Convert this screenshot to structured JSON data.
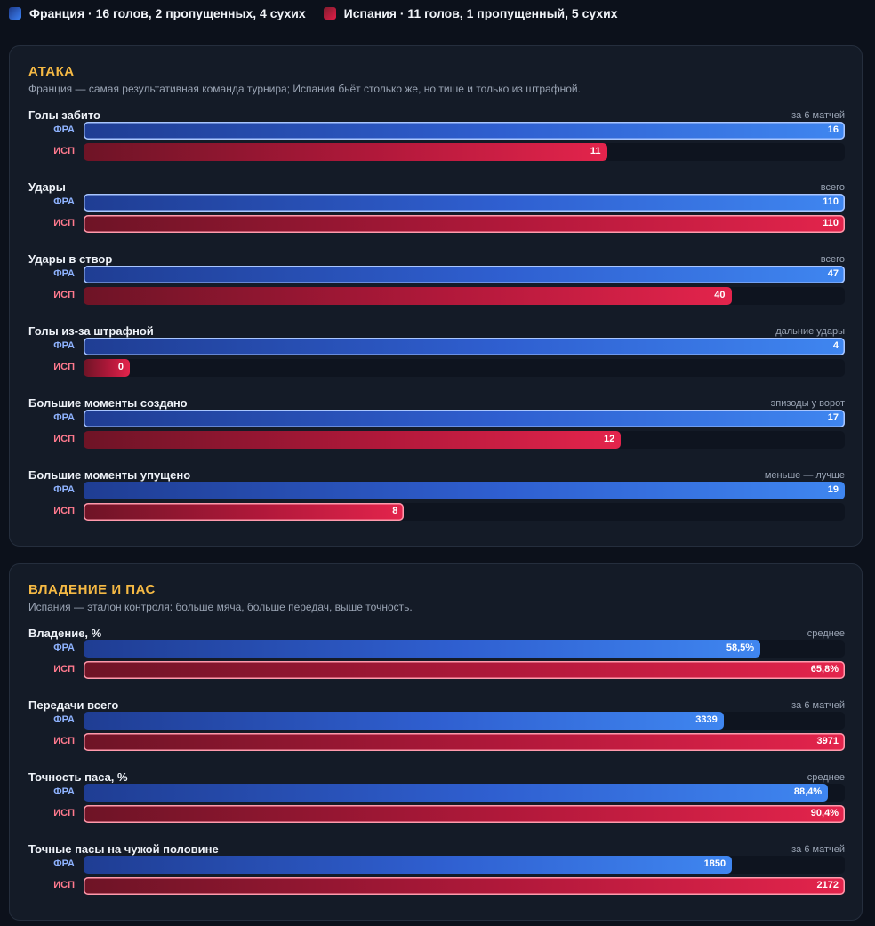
{
  "legend": {
    "fra": "Франция · 16 голов, 2 пропущенных, 4 сухих",
    "esp": "Испания · 11 голов, 1 пропущенный, 5 сухих"
  },
  "colors": {
    "fra": "#3b82f6",
    "esp": "#e11d48",
    "accent": "#f5b944"
  },
  "team_labels": {
    "fra": "ФРА",
    "esp": "ИСП"
  },
  "chart_data": [
    {
      "type": "bar",
      "title": "АТАКА",
      "subtitle": "Франция — самая результативная команда турнира; Испания бьёт столько же, но тише и только из штрафной.",
      "series": [
        {
          "name": "ФРА"
        },
        {
          "name": "ИСП"
        }
      ],
      "metrics": [
        {
          "name": "Голы забито",
          "note": "за 6 матчей",
          "fra": 16,
          "esp": 11,
          "fra_label": "16",
          "esp_label": "11",
          "higher_better": true
        },
        {
          "name": "Удары",
          "note": "всего",
          "fra": 110,
          "esp": 110,
          "fra_label": "110",
          "esp_label": "110",
          "higher_better": true
        },
        {
          "name": "Удары в створ",
          "note": "всего",
          "fra": 47,
          "esp": 40,
          "fra_label": "47",
          "esp_label": "40",
          "higher_better": true
        },
        {
          "name": "Голы из-за штрафной",
          "note": "дальние удары",
          "fra": 4,
          "esp": 0,
          "fra_label": "4",
          "esp_label": "0",
          "higher_better": true
        },
        {
          "name": "Большие моменты создано",
          "note": "эпизоды у ворот",
          "fra": 17,
          "esp": 12,
          "fra_label": "17",
          "esp_label": "12",
          "higher_better": true
        },
        {
          "name": "Большие моменты упущено",
          "note": "меньше — лучше",
          "fra": 19,
          "esp": 8,
          "fra_label": "19",
          "esp_label": "8",
          "higher_better": false
        }
      ]
    },
    {
      "type": "bar",
      "title": "ВЛАДЕНИЕ И ПАС",
      "subtitle": "Испания — эталон контроля: больше мяча, больше передач, выше точность.",
      "series": [
        {
          "name": "ФРА"
        },
        {
          "name": "ИСП"
        }
      ],
      "metrics": [
        {
          "name": "Владение, %",
          "note": "среднее",
          "fra": 58.5,
          "esp": 65.8,
          "fra_label": "58,5%",
          "esp_label": "65,8%",
          "higher_better": true
        },
        {
          "name": "Передачи всего",
          "note": "за 6 матчей",
          "fra": 3339,
          "esp": 3971,
          "fra_label": "3339",
          "esp_label": "3971",
          "higher_better": true
        },
        {
          "name": "Точность паса, %",
          "note": "среднее",
          "fra": 88.4,
          "esp": 90.4,
          "fra_label": "88,4%",
          "esp_label": "90,4%",
          "higher_better": true
        },
        {
          "name": "Точные пасы на чужой половине",
          "note": "за 6 матчей",
          "fra": 1850,
          "esp": 2172,
          "fra_label": "1850",
          "esp_label": "2172",
          "higher_better": true
        }
      ]
    }
  ]
}
